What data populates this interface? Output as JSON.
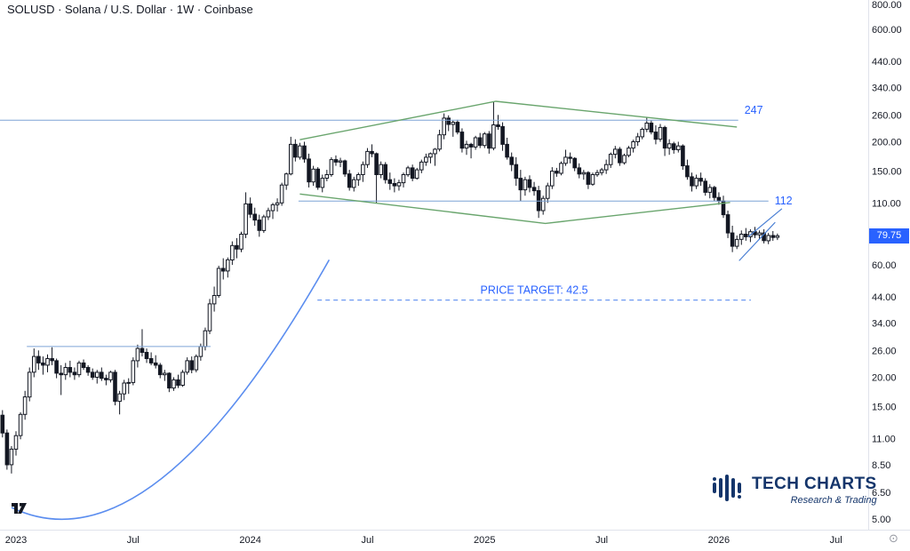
{
  "header": {
    "symbol_title": "SOLUSD · Solana / U.S. Dollar · 1W · Coinbase"
  },
  "brand": {
    "name": "TECH CHARTS",
    "tagline": "Research & Trading"
  },
  "icons": {
    "settings_glyph": "⊙"
  },
  "colors": {
    "accent_blue": "#2962FF",
    "brand_navy": "#14356b",
    "candle": "#131722",
    "trend_green": "#69a56d",
    "level_blue": "#7da3d6",
    "target_blue": "#5b8def"
  },
  "chart_data": {
    "type": "candlestick",
    "symbol": "SOLUSD",
    "name": "Solana / U.S. Dollar",
    "interval": "1W",
    "exchange": "Coinbase",
    "scale": "log",
    "price_range": [
      5,
      800
    ],
    "y_axis": {
      "ticks": [
        "800.00",
        "600.00",
        "440.00",
        "340.00",
        "260.00",
        "200.00",
        "150.00",
        "110.00",
        "60.00",
        "44.00",
        "34.00",
        "26.00",
        "20.00",
        "15.00",
        "11.00",
        "8.50",
        "6.50",
        "5.00"
      ],
      "last_price": 79.75,
      "last_price_label": "79.75"
    },
    "x_axis": {
      "ticks": [
        {
          "label": "2023",
          "week": 0
        },
        {
          "label": "Jul",
          "week": 26
        },
        {
          "label": "2024",
          "week": 52
        },
        {
          "label": "Jul",
          "week": 78
        },
        {
          "label": "2025",
          "week": 104
        },
        {
          "label": "Jul",
          "week": 130
        },
        {
          "label": "2026",
          "week": 156
        },
        {
          "label": "Jul",
          "week": 182
        }
      ]
    },
    "first_week": -3,
    "candles": [
      [
        13.8,
        14.5,
        11.1,
        11.6
      ],
      [
        11.6,
        12,
        8.1,
        8.5
      ],
      [
        8.5,
        10.2,
        7.8,
        9.9
      ],
      [
        9.9,
        11.8,
        9.3,
        11.3
      ],
      [
        11.3,
        14.2,
        10.9,
        13.9
      ],
      [
        13.9,
        17.5,
        13.2,
        16.5
      ],
      [
        16.5,
        22,
        15.8,
        21
      ],
      [
        21,
        26.5,
        20,
        24.5
      ],
      [
        24.5,
        26,
        21.5,
        23
      ],
      [
        23,
        24.5,
        20.5,
        22.5
      ],
      [
        22.5,
        25,
        21,
        24
      ],
      [
        24,
        26.8,
        22.5,
        23.5
      ],
      [
        23.5,
        24,
        19.8,
        20.8
      ],
      [
        20.8,
        22.5,
        16.8,
        20.5
      ],
      [
        20.5,
        23,
        19.5,
        22
      ],
      [
        22,
        23.5,
        20,
        21
      ],
      [
        21,
        22,
        19.5,
        20.5
      ],
      [
        20.5,
        23.5,
        20,
        23
      ],
      [
        23,
        23.8,
        21.5,
        22
      ],
      [
        22,
        22.5,
        20.3,
        21
      ],
      [
        21,
        21.8,
        19.5,
        20
      ],
      [
        20,
        21.5,
        18.8,
        21
      ],
      [
        21,
        22,
        19.3,
        19.8
      ],
      [
        19.8,
        20.5,
        18.5,
        19.5
      ],
      [
        19.5,
        21.3,
        19,
        21
      ],
      [
        21,
        21.5,
        15.2,
        15.8
      ],
      [
        15.8,
        17.5,
        13.9,
        17
      ],
      [
        17,
        19.5,
        16,
        18.9
      ],
      [
        18.9,
        19.8,
        17,
        19
      ],
      [
        19,
        24.3,
        18.5,
        23.5
      ],
      [
        23.5,
        27.5,
        22,
        26.5
      ],
      [
        26.5,
        32,
        24.5,
        25.5
      ],
      [
        25.5,
        26.5,
        23,
        24
      ],
      [
        24,
        25.5,
        22.5,
        23
      ],
      [
        23,
        24.8,
        21.8,
        22.5
      ],
      [
        22.5,
        23,
        19.8,
        20.5
      ],
      [
        20.5,
        21.5,
        19.3,
        20.8
      ],
      [
        20.8,
        21,
        17.3,
        18
      ],
      [
        18,
        20,
        17.5,
        19.5
      ],
      [
        19.5,
        20.5,
        18,
        18.5
      ],
      [
        18.5,
        21.5,
        18.2,
        21
      ],
      [
        21,
        24.3,
        20.5,
        23.5
      ],
      [
        23.5,
        24.5,
        20.8,
        21.5
      ],
      [
        21.5,
        25,
        21,
        24.5
      ],
      [
        24.5,
        27.8,
        23.5,
        27
      ],
      [
        27,
        32.5,
        26,
        31.5
      ],
      [
        31.5,
        43,
        30.5,
        41
      ],
      [
        41,
        48.5,
        38,
        44.5
      ],
      [
        44.5,
        59.5,
        43.5,
        58
      ],
      [
        58,
        64,
        52,
        56.5
      ],
      [
        56.5,
        64.5,
        53,
        63
      ],
      [
        63,
        75.5,
        60,
        72.5
      ],
      [
        72.5,
        78,
        64,
        70
      ],
      [
        70,
        83,
        68,
        81
      ],
      [
        81,
        122,
        78,
        109
      ],
      [
        109,
        116,
        95,
        98.5
      ],
      [
        98.5,
        105,
        88,
        93
      ],
      [
        93,
        98,
        79,
        84
      ],
      [
        84,
        98,
        82,
        96
      ],
      [
        96,
        105,
        93,
        102
      ],
      [
        102,
        110,
        94,
        108
      ],
      [
        108,
        115,
        101,
        110
      ],
      [
        110,
        134,
        107,
        131
      ],
      [
        131,
        148,
        125,
        146
      ],
      [
        146,
        210,
        144,
        195
      ],
      [
        195,
        205,
        165,
        172
      ],
      [
        172,
        198,
        168,
        192
      ],
      [
        192,
        200,
        163,
        169
      ],
      [
        169,
        178,
        128,
        135
      ],
      [
        135,
        158,
        130,
        153
      ],
      [
        153,
        156,
        125,
        128
      ],
      [
        128,
        145,
        122,
        140
      ],
      [
        140,
        152,
        136,
        145
      ],
      [
        145,
        172,
        142,
        168
      ],
      [
        168,
        175,
        158,
        164
      ],
      [
        164,
        171,
        156,
        166
      ],
      [
        166,
        168,
        142,
        146
      ],
      [
        146,
        152,
        124,
        128
      ],
      [
        128,
        142,
        123,
        138
      ],
      [
        138,
        148,
        130,
        145
      ],
      [
        145,
        165,
        135,
        160
      ],
      [
        160,
        188,
        155,
        182
      ],
      [
        182,
        195,
        172,
        178
      ],
      [
        178,
        180,
        110,
        145
      ],
      [
        145,
        165,
        140,
        160
      ],
      [
        160,
        164,
        133,
        138
      ],
      [
        138,
        148,
        125,
        133
      ],
      [
        133,
        140,
        122,
        130
      ],
      [
        130,
        138,
        124,
        134
      ],
      [
        134,
        148,
        128,
        145
      ],
      [
        145,
        158,
        142,
        155
      ],
      [
        155,
        160,
        136,
        140
      ],
      [
        140,
        155,
        138,
        152
      ],
      [
        152,
        168,
        147,
        164
      ],
      [
        164,
        178,
        158,
        172
      ],
      [
        172,
        180,
        162,
        178
      ],
      [
        178,
        188,
        158,
        186
      ],
      [
        186,
        225,
        182,
        214
      ],
      [
        214,
        264,
        205,
        252
      ],
      [
        252,
        259,
        222,
        237
      ],
      [
        237,
        246,
        210,
        242
      ],
      [
        242,
        248,
        215,
        220
      ],
      [
        220,
        228,
        180,
        188
      ],
      [
        188,
        202,
        176,
        195
      ],
      [
        195,
        198,
        170,
        190
      ],
      [
        190,
        212,
        185,
        208
      ],
      [
        208,
        218,
        188,
        193
      ],
      [
        193,
        220,
        188,
        216
      ],
      [
        216,
        222,
        178,
        188
      ],
      [
        188,
        295,
        184,
        236
      ],
      [
        236,
        260,
        225,
        232
      ],
      [
        232,
        242,
        183,
        195
      ],
      [
        195,
        208,
        168,
        172
      ],
      [
        172,
        180,
        150,
        160
      ],
      [
        160,
        172,
        130,
        140
      ],
      [
        140,
        152,
        112,
        125
      ],
      [
        125,
        142,
        118,
        138
      ],
      [
        138,
        144,
        122,
        128
      ],
      [
        128,
        135,
        118,
        124
      ],
      [
        124,
        130,
        95,
        102
      ],
      [
        102,
        118,
        98,
        115
      ],
      [
        115,
        134,
        110,
        130
      ],
      [
        130,
        156,
        126,
        150
      ],
      [
        150,
        155,
        142,
        147
      ],
      [
        147,
        165,
        144,
        162
      ],
      [
        162,
        185,
        158,
        172
      ],
      [
        172,
        180,
        162,
        170
      ],
      [
        170,
        172,
        150,
        155
      ],
      [
        155,
        162,
        140,
        146
      ],
      [
        146,
        152,
        138,
        148
      ],
      [
        148,
        150,
        126,
        132
      ],
      [
        132,
        148,
        130,
        145
      ],
      [
        145,
        152,
        142,
        148
      ],
      [
        148,
        155,
        144,
        152
      ],
      [
        152,
        168,
        146,
        160
      ],
      [
        160,
        180,
        155,
        177
      ],
      [
        177,
        192,
        170,
        186
      ],
      [
        186,
        190,
        158,
        163
      ],
      [
        163,
        178,
        160,
        175
      ],
      [
        175,
        192,
        172,
        188
      ],
      [
        188,
        204,
        180,
        200
      ],
      [
        200,
        218,
        192,
        210
      ],
      [
        210,
        230,
        205,
        226
      ],
      [
        226,
        253,
        220,
        240
      ],
      [
        240,
        246,
        215,
        220
      ],
      [
        220,
        235,
        195,
        205
      ],
      [
        205,
        238,
        200,
        230
      ],
      [
        230,
        234,
        174,
        188
      ],
      [
        188,
        205,
        176,
        196
      ],
      [
        196,
        200,
        178,
        185
      ],
      [
        185,
        200,
        180,
        192
      ],
      [
        192,
        195,
        152,
        158
      ],
      [
        158,
        168,
        138,
        142
      ],
      [
        142,
        148,
        123,
        130
      ],
      [
        130,
        145,
        126,
        140
      ],
      [
        140,
        148,
        130,
        136
      ],
      [
        136,
        140,
        118,
        122
      ],
      [
        122,
        132,
        115,
        128
      ],
      [
        128,
        130,
        112,
        116
      ],
      [
        116,
        122,
        108,
        112
      ],
      [
        112,
        118,
        95,
        98
      ],
      [
        98,
        102,
        78,
        82
      ],
      [
        82,
        88,
        68,
        72
      ],
      [
        72,
        80,
        70,
        77
      ],
      [
        77,
        84,
        73,
        81
      ],
      [
        81,
        86,
        76,
        79
      ],
      [
        79,
        85,
        75,
        83
      ],
      [
        83,
        87,
        78,
        80.5
      ],
      [
        80.5,
        84,
        77,
        82
      ],
      [
        82,
        85,
        74,
        76
      ],
      [
        76,
        82,
        73.5,
        80
      ],
      [
        80,
        83.5,
        76,
        78.5
      ],
      [
        78.5,
        81.5,
        76.5,
        79.75
      ]
    ],
    "drawings": [
      {
        "id": "resistance-247",
        "type": "segment",
        "p1": [
          -3.6,
          247
        ],
        "p2": [
          160.3,
          247
        ],
        "color": "#7da3d6",
        "width": 1,
        "label": "247",
        "label_color": "#2962FF",
        "label_at": "right",
        "label_dy": -7
      },
      {
        "id": "support-112",
        "type": "segment",
        "p1": [
          62.7,
          112
        ],
        "p2": [
          167,
          112
        ],
        "color": "#7da3d6",
        "width": 1,
        "label": "112",
        "label_color": "#2962FF",
        "label_at": "right",
        "label_dy": 4
      },
      {
        "id": "price-target",
        "type": "segment",
        "p1": [
          66.9,
          42.5
        ],
        "p2": [
          163.1,
          42.5
        ],
        "color": "#5b8def",
        "width": 1.2,
        "dash": "5 4",
        "label": "PRICE TARGET: 42.5",
        "label_color": "#2962FF",
        "label_at": "above-center"
      },
      {
        "id": "resistance-27",
        "type": "segment",
        "p1": [
          2.4,
          27
        ],
        "p2": [
          43.2,
          27
        ],
        "color": "#7da3d6",
        "width": 1
      },
      {
        "id": "diamond-top",
        "type": "polyline",
        "points": [
          [
            63,
            204
          ],
          [
            106.5,
            297
          ],
          [
            160,
            231
          ]
        ],
        "color": "#69a56d",
        "width": 1.4
      },
      {
        "id": "diamond-bottom",
        "type": "polyline",
        "points": [
          [
            63,
            120
          ],
          [
            117.5,
            90
          ],
          [
            158.5,
            110.5
          ]
        ],
        "color": "#69a56d",
        "width": 1.4
      },
      {
        "id": "base-arc",
        "type": "quad",
        "points": [
          [
            -1,
            5.6
          ],
          [
            30,
            2.9
          ],
          [
            69.5,
            63
          ]
        ],
        "color": "#5b8def",
        "width": 1.6
      },
      {
        "id": "flag-lower",
        "type": "segment",
        "p1": [
          160.5,
          62.5
        ],
        "p2": [
          168.5,
          91
        ],
        "color": "#4a7fd4",
        "width": 1.2
      },
      {
        "id": "flag-upper",
        "type": "segment",
        "p1": [
          162.5,
          79
        ],
        "p2": [
          170,
          104
        ],
        "color": "#4a7fd4",
        "width": 1.2
      }
    ]
  }
}
